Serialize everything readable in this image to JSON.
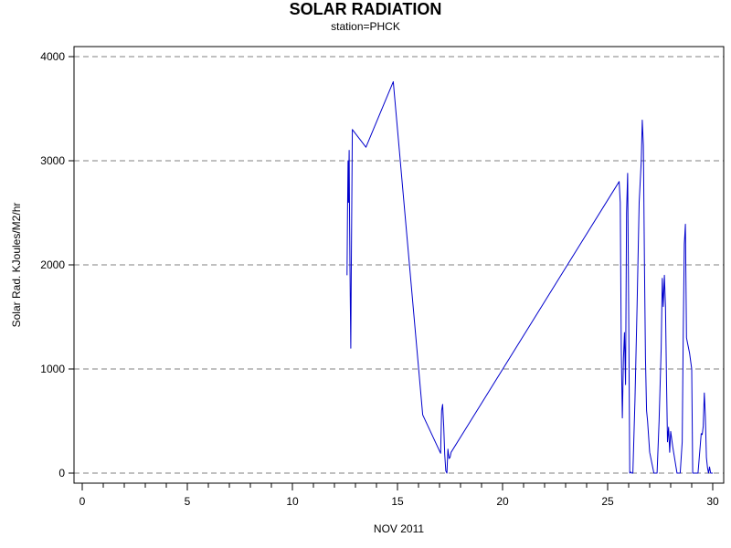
{
  "chart_data": {
    "type": "line",
    "title": "SOLAR RADIATION",
    "subtitle": "station=PHCK",
    "xlabel": "NOV 2011",
    "ylabel": "Solar Rad. KJoules/M2/hr",
    "xlim": [
      0,
      30
    ],
    "ylim": [
      0,
      4000
    ],
    "xticks": [
      0,
      5,
      10,
      15,
      20,
      25,
      30
    ],
    "yticks": [
      0,
      1000,
      2000,
      3000,
      4000
    ],
    "grid": "horizontal-dashed",
    "series": [
      {
        "color": "#0000cc",
        "x": [
          12.6,
          12.62,
          12.65,
          12.67,
          12.7,
          12.72,
          12.75,
          12.78,
          12.8,
          12.85,
          13.5,
          14.8,
          16.2,
          17.05,
          17.1,
          17.15,
          17.2,
          17.25,
          17.3,
          17.35,
          17.4,
          17.45,
          17.5,
          17.55,
          25.55,
          25.6,
          25.65,
          25.7,
          25.75,
          25.8,
          25.85,
          25.9,
          25.95,
          26.0,
          26.05,
          26.1,
          26.15,
          26.2,
          26.3,
          26.4,
          26.5,
          26.6,
          26.65,
          26.7,
          26.75,
          26.8,
          26.85,
          26.9,
          27.0,
          27.2,
          27.35,
          27.45,
          27.55,
          27.6,
          27.65,
          27.7,
          27.75,
          27.8,
          27.85,
          27.9,
          27.95,
          28.0,
          28.1,
          28.3,
          28.45,
          28.55,
          28.6,
          28.65,
          28.7,
          28.75,
          28.8,
          28.9,
          29.0,
          29.05,
          29.1,
          29.3,
          29.4,
          29.45,
          29.5,
          29.55,
          29.6,
          29.65,
          29.7,
          29.75,
          29.8,
          29.85,
          29.9,
          29.95,
          30.0
        ],
        "y": [
          1900,
          2500,
          3000,
          2600,
          3100,
          2400,
          1700,
          1200,
          1900,
          3300,
          3130,
          3760,
          560,
          190,
          600,
          660,
          450,
          180,
          20,
          0,
          230,
          140,
          150,
          200,
          2800,
          2600,
          1200,
          530,
          1100,
          1350,
          850,
          2500,
          2880,
          1600,
          0,
          10,
          0,
          0,
          700,
          1600,
          2600,
          3000,
          3390,
          3150,
          2000,
          1100,
          600,
          500,
          200,
          0,
          0,
          500,
          1200,
          1870,
          1600,
          1900,
          1600,
          900,
          300,
          440,
          200,
          400,
          250,
          0,
          0,
          300,
          1400,
          2200,
          2390,
          1300,
          1250,
          1150,
          1000,
          0,
          0,
          0,
          250,
          380,
          370,
          450,
          770,
          550,
          150,
          50,
          0,
          60,
          0,
          0,
          0
        ]
      }
    ]
  }
}
